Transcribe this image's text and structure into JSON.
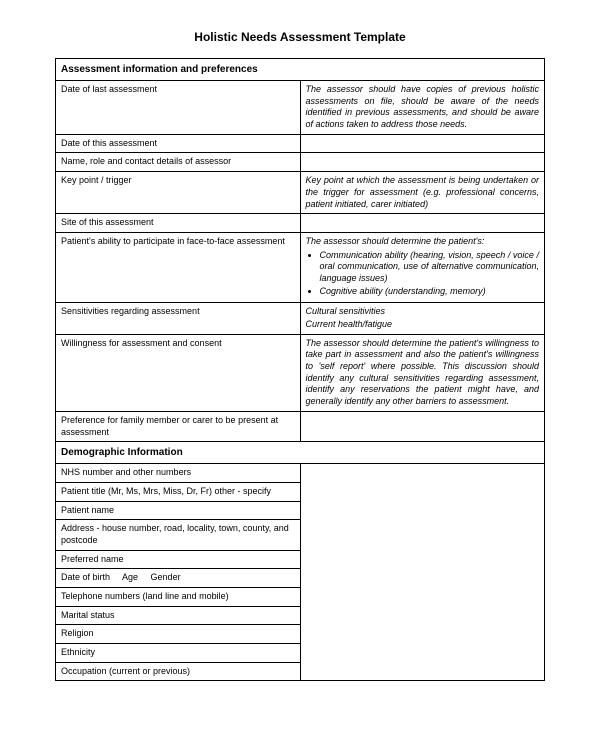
{
  "title": "Holistic Needs Assessment Template",
  "section1": {
    "header": "Assessment information and preferences",
    "rows": {
      "r1": {
        "label": "Date of last assessment",
        "desc": "The assessor should have copies of previous holistic assessments on file, should be aware of the needs identified in previous assessments, and should be aware of actions taken to address those needs."
      },
      "r2": {
        "label": "Date of this assessment"
      },
      "r3": {
        "label": "Name, role and contact details of assessor"
      },
      "r4": {
        "label": "Key point / trigger",
        "desc": "Key point at which the assessment is being undertaken or the trigger for assessment (e.g. professional concerns, patient initiated, carer initiated)"
      },
      "r5": {
        "label": "Site of this assessment"
      },
      "r6": {
        "label": "Patient's ability to participate in face-to-face assessment",
        "desc_lead": "The assessor should determine the patient's:",
        "bullet1": "Communication ability (hearing, vision, speech / voice / oral communication, use of alternative communication, language issues)",
        "bullet2": "Cognitive ability (understanding, memory)"
      },
      "r7": {
        "label": "Sensitivities regarding assessment",
        "desc_l1": "Cultural sensitivities",
        "desc_l2": "Current health/fatigue"
      },
      "r8": {
        "label": "Willingness for assessment and consent",
        "desc": "The assessor should determine the patient's willingness to take part in assessment and also the patient's willingness to 'self report' where possible. This discussion should identify any cultural sensitivities regarding assessment, identify any reservations the patient might have, and generally identify any other barriers to assessment."
      },
      "r9": {
        "label": "Preference for family member or carer to be present at assessment"
      }
    }
  },
  "section2": {
    "header": "Demographic Information",
    "rows": {
      "d1": "NHS number and other numbers",
      "d2": "Patient title (Mr, Ms, Mrs, Miss, Dr, Fr) other - specify",
      "d3": "Patient name",
      "d4": "Address - house number, road, locality, town, county, and postcode",
      "d5": "Preferred name",
      "d6": "Date of birth     Age     Gender",
      "d7": "Telephone numbers (land line and mobile)",
      "d8": "Marital status",
      "d9": "Religion",
      "d10": "Ethnicity",
      "d11": "Occupation (current or previous)"
    }
  }
}
